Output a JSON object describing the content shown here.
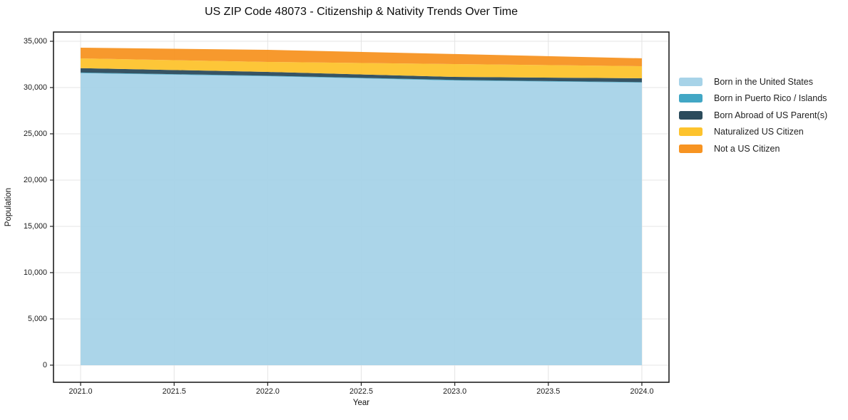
{
  "chart_data": {
    "type": "area",
    "stacked": true,
    "title": "US ZIP Code 48073 - Citizenship & Nativity Trends Over Time",
    "xlabel": "Year",
    "ylabel": "Population",
    "x": [
      2021,
      2022,
      2023,
      2024
    ],
    "series": [
      {
        "name": "Born in the United States",
        "color": "#a7d3e8",
        "values": [
          31560,
          31220,
          30760,
          30530
        ]
      },
      {
        "name": "Born in Puerto Rico / Islands",
        "color": "#42a7c5",
        "values": [
          60,
          60,
          60,
          60
        ]
      },
      {
        "name": "Born Abroad of US Parent(s)",
        "color": "#2b4b5c",
        "values": [
          480,
          410,
          330,
          410
        ]
      },
      {
        "name": "Naturalized US Citizen",
        "color": "#fdc32d",
        "values": [
          1050,
          1080,
          1390,
          1310
        ]
      },
      {
        "name": "Not a US Citizen",
        "color": "#f79422",
        "values": [
          1160,
          1310,
          1080,
          850
        ]
      }
    ],
    "totals": [
      34310,
      34080,
      33620,
      33160
    ],
    "xticks": [
      2021.0,
      2021.5,
      2022.0,
      2022.5,
      2023.0,
      2023.5,
      2024.0
    ],
    "xtick_labels": [
      "2021.0",
      "2021.5",
      "2022.0",
      "2022.5",
      "2023.0",
      "2023.5",
      "2024.0"
    ],
    "yticks": [
      0,
      5000,
      10000,
      15000,
      20000,
      25000,
      30000,
      35000
    ],
    "ytick_labels": [
      "0",
      "5,000",
      "10,000",
      "15,000",
      "20,000",
      "25,000",
      "30,000",
      "35,000"
    ],
    "xlim": [
      2020.855,
      2024.145
    ],
    "ylim": [
      -1850,
      36000
    ],
    "grid": true,
    "legend_position": "right",
    "spine_color": "#1f1f1f",
    "grid_color": "#e4e4e4"
  }
}
